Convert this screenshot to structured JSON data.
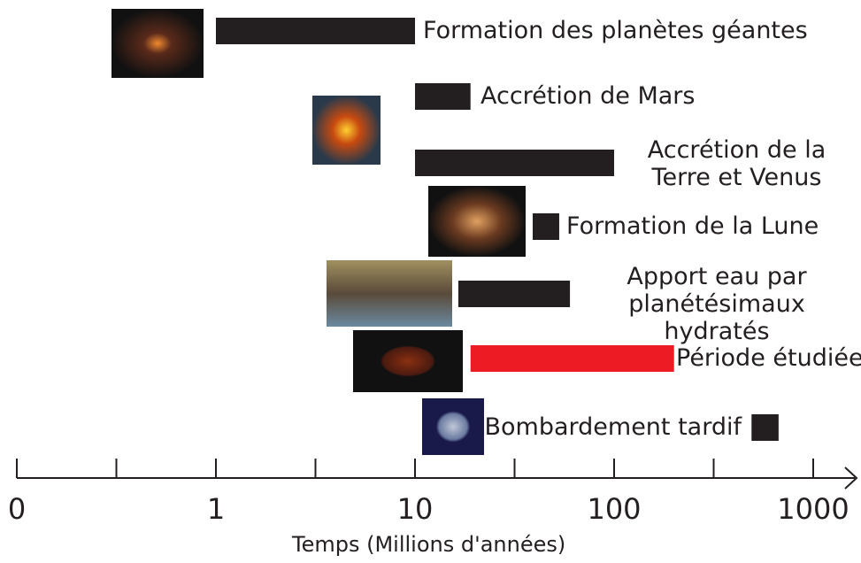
{
  "chart_data": {
    "type": "timeline",
    "x_label": "Temps (Millions d'années)",
    "xscale": "log",
    "xlim": [
      0.1,
      1000
    ],
    "xticks": [
      {
        "value": 0.1,
        "label": "0"
      },
      1,
      10,
      100,
      1000
    ],
    "xminorticks": [
      0.3162,
      3.162,
      31.62,
      316.2
    ],
    "categories": [
      "Formation des planètes géantes",
      "Accrétion de Mars",
      "Accrétion de la Terre et Venus",
      "Formation de la Lune",
      "Apport eau par planétésimaux hydratés",
      "Période étudiée",
      "Bombardement tardif"
    ],
    "start": [
      1,
      10,
      10,
      39,
      16.5,
      19,
      490
    ],
    "end": [
      10,
      19,
      100,
      53,
      60,
      200,
      670
    ],
    "colors": [
      "#231f20",
      "#231f20",
      "#231f20",
      "#231f20",
      "#231f20",
      "#ed1c24",
      "#231f20"
    ]
  }
}
